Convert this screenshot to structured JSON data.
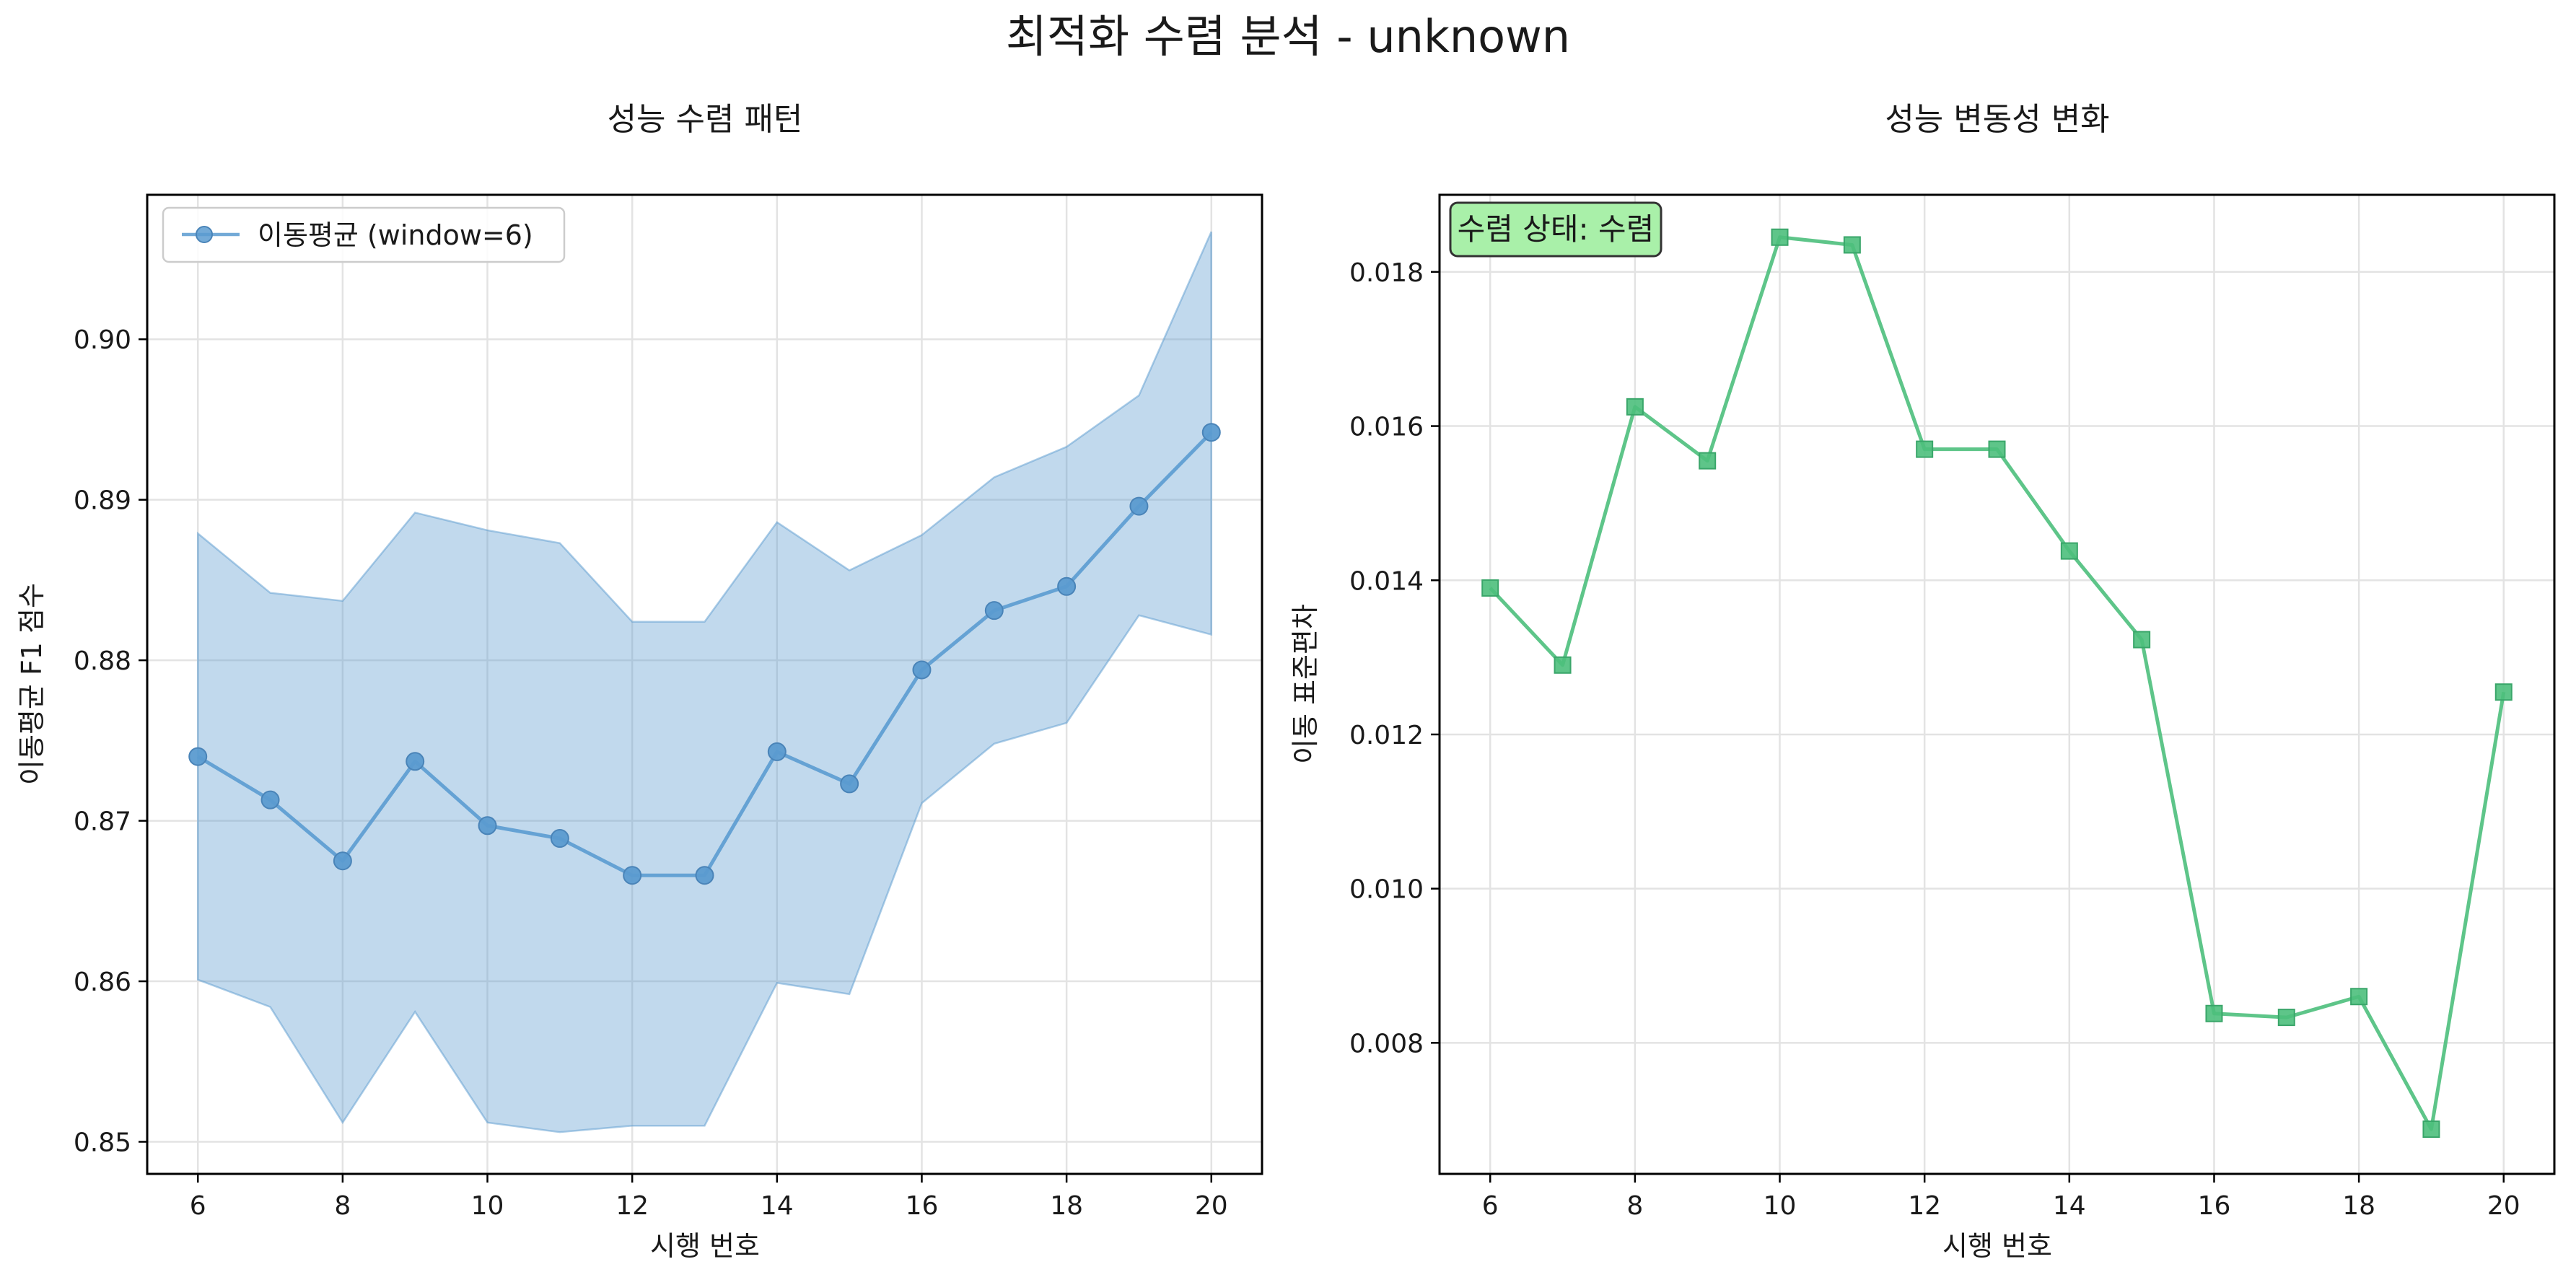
{
  "figure": {
    "title": "최적화 수렴 분석 - unknown"
  },
  "chart_data": [
    {
      "type": "line",
      "title": "성능 수렴 패턴",
      "xlabel": "시행 번호",
      "ylabel": "이동평균 F1 점수",
      "x": [
        6,
        7,
        8,
        9,
        10,
        11,
        12,
        13,
        14,
        15,
        16,
        17,
        18,
        19,
        20
      ],
      "xlim": [
        5.3,
        20.7
      ],
      "ylim": [
        0.848,
        0.909
      ],
      "xticks": [
        6,
        8,
        10,
        12,
        14,
        16,
        18,
        20
      ],
      "yticks": [
        0.85,
        0.86,
        0.87,
        0.88,
        0.89,
        0.9
      ],
      "ytick_labels": [
        "0.85",
        "0.86",
        "0.87",
        "0.88",
        "0.89",
        "0.90"
      ],
      "grid": true,
      "legend": {
        "position": "upper-left"
      },
      "series": [
        {
          "name": "이동평균 (window=6)",
          "color": "#5b9bd0",
          "marker": "circle",
          "values": [
            0.874,
            0.8713,
            0.8675,
            0.8737,
            0.8697,
            0.8689,
            0.8666,
            0.8666,
            0.8743,
            0.8723,
            0.8794,
            0.8831,
            0.8846,
            0.8896,
            0.8942
          ]
        }
      ],
      "band": {
        "color": "#5b9bd0",
        "upper": [
          0.8879,
          0.8842,
          0.8837,
          0.8892,
          0.8881,
          0.8873,
          0.8824,
          0.8824,
          0.8886,
          0.8856,
          0.8878,
          0.8914,
          0.8933,
          0.8965,
          0.9067
        ],
        "lower": [
          0.8601,
          0.8584,
          0.8512,
          0.8581,
          0.8512,
          0.8506,
          0.851,
          0.851,
          0.8599,
          0.8592,
          0.8711,
          0.8748,
          0.8761,
          0.8828,
          0.8816
        ]
      }
    },
    {
      "type": "line",
      "title": "성능 변동성 변화",
      "xlabel": "시행 번호",
      "ylabel": "이동 표준편차",
      "x": [
        6,
        7,
        8,
        9,
        10,
        11,
        12,
        13,
        14,
        15,
        16,
        17,
        18,
        19,
        20
      ],
      "xlim": [
        5.3,
        20.7
      ],
      "ylim": [
        0.0063,
        0.019
      ],
      "xticks": [
        6,
        8,
        10,
        12,
        14,
        16,
        18,
        20
      ],
      "yticks": [
        0.008,
        0.01,
        0.012,
        0.014,
        0.016,
        0.018
      ],
      "ytick_labels": [
        "0.008",
        "0.010",
        "0.012",
        "0.014",
        "0.016",
        "0.018"
      ],
      "grid": true,
      "series": [
        {
          "color": "#4cbf7c",
          "marker": "square",
          "values": [
            0.0139,
            0.0129,
            0.01625,
            0.01555,
            0.01845,
            0.01835,
            0.0157,
            0.0157,
            0.01438,
            0.01323,
            0.00838,
            0.00833,
            0.0086,
            0.00688,
            0.01255
          ]
        }
      ],
      "annotation": {
        "text": "수렴 상태: 수렴",
        "position": "top-left",
        "background": "#a9f0a9"
      }
    }
  ]
}
